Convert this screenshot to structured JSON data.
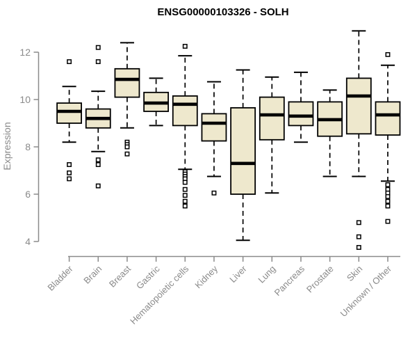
{
  "page": {
    "title": "ENSG00000103326 - SOLH"
  },
  "chart_data": {
    "type": "boxplot",
    "title": "ENSG00000103326 - SOLH",
    "xlabel": "",
    "ylabel": "Expression",
    "ylim": [
      3.6,
      13.2
    ],
    "yticks": [
      4,
      6,
      8,
      10,
      12
    ],
    "grid": false,
    "legend": "none",
    "categories": [
      "Bladder",
      "Brain",
      "Breast",
      "Gastric",
      "Hematopoietic cells",
      "Kidney",
      "Liver",
      "Lung",
      "Pancreas",
      "Prostate",
      "Skin",
      "Unknown / Other"
    ],
    "boxes": [
      {
        "category": "Bladder",
        "low": 8.2,
        "q1": 9.0,
        "median": 9.5,
        "q3": 9.85,
        "high": 10.55,
        "outliers": [
          11.6,
          7.25,
          6.9,
          6.65
        ]
      },
      {
        "category": "Brain",
        "low": 7.8,
        "q1": 8.8,
        "median": 9.2,
        "q3": 9.6,
        "high": 10.35,
        "outliers": [
          12.2,
          11.6,
          7.45,
          7.25,
          6.35
        ]
      },
      {
        "category": "Breast",
        "low": 8.8,
        "q1": 10.1,
        "median": 10.85,
        "q3": 11.3,
        "high": 12.4,
        "outliers": [
          8.2,
          8.1,
          8.0,
          7.7
        ]
      },
      {
        "category": "Gastric",
        "low": 8.9,
        "q1": 9.5,
        "median": 9.85,
        "q3": 10.3,
        "high": 10.9,
        "outliers": []
      },
      {
        "category": "Hematopoietic cells",
        "low": 7.05,
        "q1": 8.9,
        "median": 9.8,
        "q3": 10.15,
        "high": 11.85,
        "outliers": [
          12.25,
          6.95,
          6.85,
          6.75,
          6.65,
          6.5,
          6.2,
          5.95,
          5.7,
          5.5
        ]
      },
      {
        "category": "Kidney",
        "low": 6.75,
        "q1": 8.25,
        "median": 9.0,
        "q3": 9.4,
        "high": 10.75,
        "outliers": [
          6.05
        ]
      },
      {
        "category": "Liver",
        "low": 4.05,
        "q1": 6.0,
        "median": 7.3,
        "q3": 9.65,
        "high": 11.25,
        "outliers": []
      },
      {
        "category": "Lung",
        "low": 6.05,
        "q1": 8.3,
        "median": 9.35,
        "q3": 10.1,
        "high": 10.95,
        "outliers": []
      },
      {
        "category": "Pancreas",
        "low": 8.2,
        "q1": 8.9,
        "median": 9.3,
        "q3": 9.9,
        "high": 11.15,
        "outliers": []
      },
      {
        "category": "Prostate",
        "low": 6.75,
        "q1": 8.45,
        "median": 9.15,
        "q3": 9.9,
        "high": 10.4,
        "outliers": []
      },
      {
        "category": "Skin",
        "low": 6.75,
        "q1": 8.55,
        "median": 10.15,
        "q3": 10.9,
        "high": 12.9,
        "outliers": [
          4.8,
          4.2,
          3.75
        ]
      },
      {
        "category": "Unknown / Other",
        "low": 6.55,
        "q1": 8.5,
        "median": 9.35,
        "q3": 9.9,
        "high": 11.45,
        "outliers": [
          11.9,
          6.4,
          6.2,
          6.05,
          5.9,
          5.7,
          5.5,
          4.85
        ]
      }
    ],
    "colors": {
      "box_fill": "#EEE8CD",
      "box_border": "#000000",
      "axis": "#8A8A8A",
      "title_color": "#000000"
    }
  }
}
